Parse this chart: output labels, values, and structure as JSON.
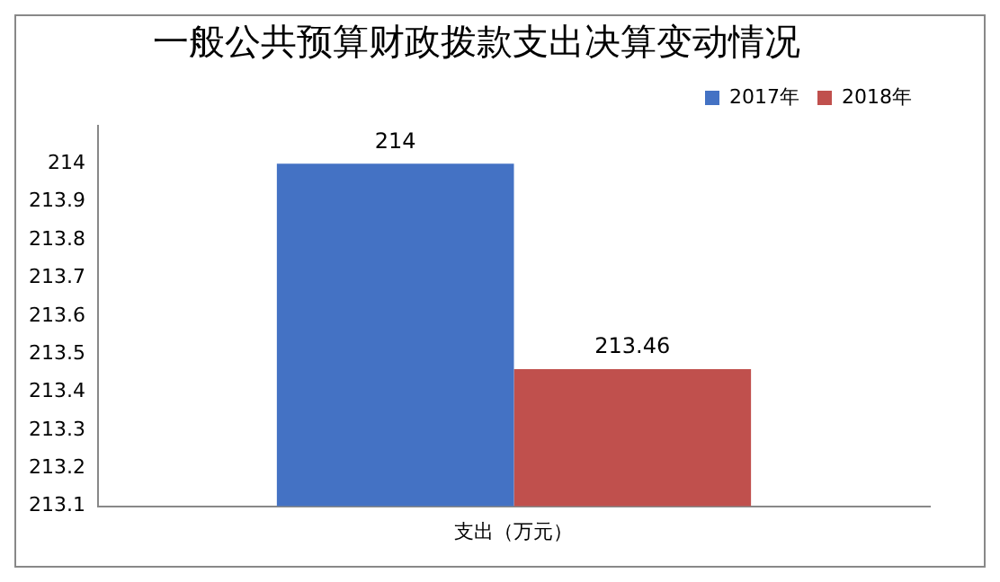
{
  "chart_data": {
    "type": "bar",
    "title": "一般公共预算财政拨款支出决算变动情况",
    "categories": [
      "支出（万元）"
    ],
    "series": [
      {
        "name": "2017年",
        "color": "#4472c4",
        "values": [
          214
        ]
      },
      {
        "name": "2018年",
        "color": "#c0504d",
        "values": [
          213.46
        ]
      }
    ],
    "ylim": [
      213.1,
      214.1
    ],
    "yticks": [
      213.1,
      213.2,
      213.3,
      213.4,
      213.5,
      213.6,
      213.7,
      213.8,
      213.9,
      214
    ],
    "grid": false,
    "legend": "top right",
    "data_labels": true
  }
}
